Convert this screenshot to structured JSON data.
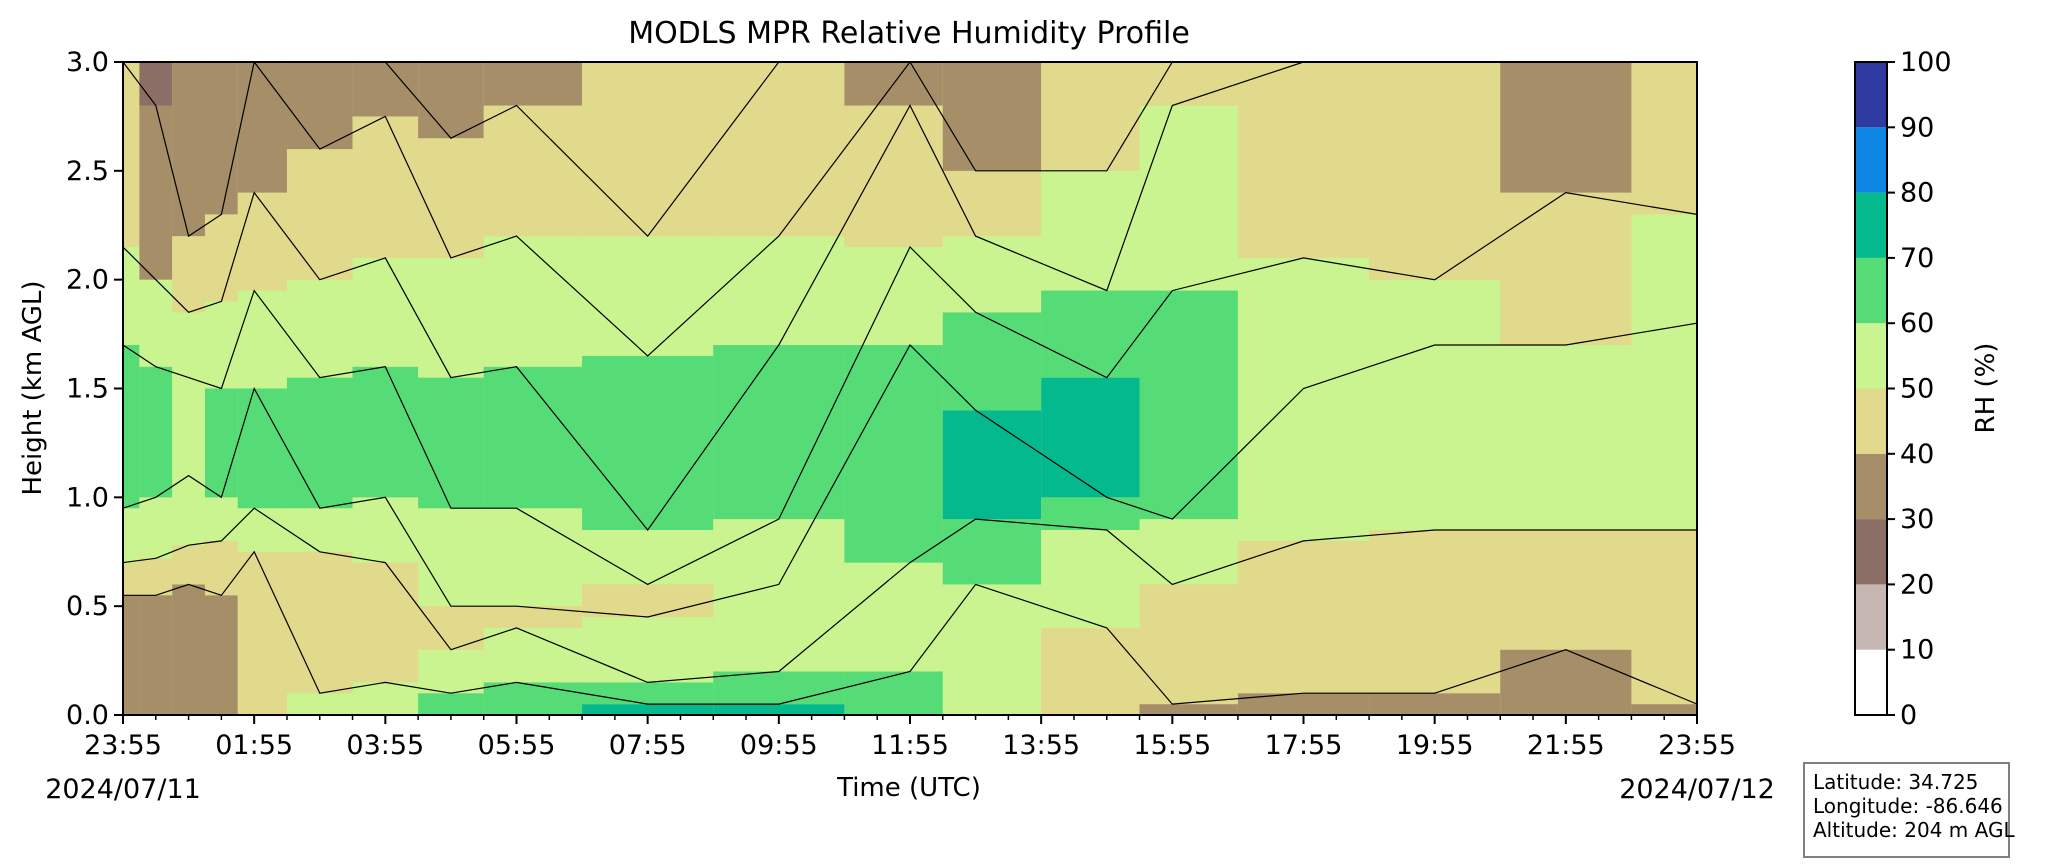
{
  "colors": {
    "levels": [
      "#ffffff",
      "#c7b7b3",
      "#8b6e65",
      "#a68f68",
      "#e1d98b",
      "#c9f48f",
      "#55dc77",
      "#05b98e",
      "#0c86e2",
      "#2e3aa0"
    ],
    "contour_line": "#000000"
  },
  "chart_data": {
    "type": "heatmap",
    "title": "MODLS MPR Relative Humidity Profile",
    "xlabel": "Time (UTC)",
    "ylabel": "Height (km AGL)",
    "x_ticks": [
      "23:55",
      "01:55",
      "03:55",
      "05:55",
      "07:55",
      "09:55",
      "11:55",
      "13:55",
      "15:55",
      "17:55",
      "19:55",
      "21:55",
      "23:55"
    ],
    "x_dates": [
      "2024/07/11",
      "2024/07/12"
    ],
    "y_ticks": [
      "0.0",
      "0.5",
      "1.0",
      "1.5",
      "2.0",
      "2.5",
      "3.0"
    ],
    "ylim": [
      0,
      3
    ],
    "xlim_hours": [
      0,
      24
    ],
    "colorbar": {
      "label": "RH (%)",
      "levels": [
        0,
        10,
        20,
        30,
        40,
        50,
        60,
        70,
        80,
        90,
        100
      ],
      "tick_labels": [
        "0",
        "10",
        "20",
        "30",
        "40",
        "50",
        "60",
        "70",
        "80",
        "90",
        "100"
      ]
    },
    "grid": false,
    "time_columns_hours": [
      0,
      0.5,
      1,
      1.5,
      2,
      2.5,
      3,
      3.5,
      4,
      4.5,
      5,
      5.5,
      6,
      6.5,
      7,
      7.5,
      8,
      8.5,
      9,
      9.5,
      10,
      10.5,
      11,
      11.5,
      12,
      12.5,
      13,
      13.5,
      14,
      14.5,
      15,
      15.5,
      16,
      16.5,
      17,
      17.5,
      18,
      18.5,
      19,
      19.5,
      20,
      20.5,
      21,
      21.5,
      22,
      22.5,
      23,
      23.5,
      24
    ],
    "bands_note_km": "Each column lists upper heights (km) of stacked RH classes, bottom to top.",
    "bands": [
      {
        "t": 0,
        "layers": [
          [
            30,
            0.55
          ],
          [
            40,
            0.7
          ],
          [
            50,
            0.95
          ],
          [
            60,
            1.7
          ],
          [
            50,
            2.15
          ],
          [
            40,
            3.0
          ]
        ]
      },
      {
        "t": 0.5,
        "layers": [
          [
            30,
            0.55
          ],
          [
            40,
            0.72
          ],
          [
            50,
            1.0
          ],
          [
            60,
            1.6
          ],
          [
            50,
            2.0
          ],
          [
            30,
            2.8
          ],
          [
            20,
            3.0
          ]
        ]
      },
      {
        "t": 1,
        "layers": [
          [
            30,
            0.6
          ],
          [
            40,
            0.78
          ],
          [
            50,
            1.1
          ],
          [
            50,
            1.55
          ],
          [
            50,
            1.85
          ],
          [
            40,
            2.2
          ],
          [
            30,
            3.0
          ]
        ]
      },
      {
        "t": 1.5,
        "layers": [
          [
            30,
            0.55
          ],
          [
            40,
            0.8
          ],
          [
            50,
            1.0
          ],
          [
            60,
            1.5
          ],
          [
            50,
            1.9
          ],
          [
            40,
            2.3
          ],
          [
            30,
            3.0
          ]
        ]
      },
      {
        "t": 2,
        "layers": [
          [
            40,
            0.75
          ],
          [
            50,
            0.95
          ],
          [
            60,
            1.5
          ],
          [
            50,
            1.95
          ],
          [
            40,
            2.4
          ],
          [
            30,
            3.0
          ]
        ]
      },
      {
        "t": 3,
        "layers": [
          [
            50,
            0.1
          ],
          [
            40,
            0.75
          ],
          [
            50,
            0.95
          ],
          [
            60,
            1.55
          ],
          [
            50,
            2.0
          ],
          [
            40,
            2.6
          ],
          [
            30,
            3.0
          ]
        ]
      },
      {
        "t": 4,
        "layers": [
          [
            50,
            0.15
          ],
          [
            40,
            0.7
          ],
          [
            50,
            1.0
          ],
          [
            60,
            1.6
          ],
          [
            50,
            2.1
          ],
          [
            40,
            2.75
          ],
          [
            30,
            3.0
          ]
        ]
      },
      {
        "t": 5,
        "layers": [
          [
            60,
            0.1
          ],
          [
            50,
            0.3
          ],
          [
            40,
            0.5
          ],
          [
            50,
            0.95
          ],
          [
            60,
            1.55
          ],
          [
            50,
            2.1
          ],
          [
            40,
            2.65
          ],
          [
            30,
            3.0
          ]
        ]
      },
      {
        "t": 6,
        "layers": [
          [
            60,
            0.15
          ],
          [
            50,
            0.4
          ],
          [
            40,
            0.5
          ],
          [
            50,
            0.95
          ],
          [
            60,
            1.6
          ],
          [
            50,
            2.2
          ],
          [
            40,
            2.8
          ],
          [
            30,
            3.0
          ]
        ]
      },
      {
        "t": 8,
        "layers": [
          [
            70,
            0.05
          ],
          [
            60,
            0.15
          ],
          [
            50,
            0.45
          ],
          [
            40,
            0.6
          ],
          [
            50,
            0.85
          ],
          [
            60,
            1.65
          ],
          [
            50,
            2.2
          ],
          [
            40,
            3.0
          ]
        ]
      },
      {
        "t": 10,
        "layers": [
          [
            70,
            0.05
          ],
          [
            60,
            0.2
          ],
          [
            50,
            0.6
          ],
          [
            50,
            0.9
          ],
          [
            60,
            1.7
          ],
          [
            50,
            2.2
          ],
          [
            40,
            3.0
          ]
        ]
      },
      {
        "t": 12,
        "layers": [
          [
            60,
            0.2
          ],
          [
            50,
            0.7
          ],
          [
            60,
            1.7
          ],
          [
            50,
            2.15
          ],
          [
            40,
            2.8
          ],
          [
            30,
            3.0
          ]
        ]
      },
      {
        "t": 13,
        "layers": [
          [
            50,
            0.6
          ],
          [
            60,
            0.9
          ],
          [
            70,
            1.4
          ],
          [
            60,
            1.85
          ],
          [
            50,
            2.2
          ],
          [
            40,
            2.5
          ],
          [
            30,
            3.0
          ]
        ]
      },
      {
        "t": 15,
        "layers": [
          [
            40,
            0.4
          ],
          [
            50,
            0.85
          ],
          [
            60,
            1.0
          ],
          [
            70,
            1.55
          ],
          [
            60,
            1.95
          ],
          [
            50,
            2.5
          ],
          [
            40,
            3.0
          ]
        ]
      },
      {
        "t": 16,
        "layers": [
          [
            30,
            0.05
          ],
          [
            40,
            0.6
          ],
          [
            50,
            0.9
          ],
          [
            60,
            1.95
          ],
          [
            50,
            2.8
          ],
          [
            40,
            3.0
          ]
        ]
      },
      {
        "t": 18,
        "layers": [
          [
            30,
            0.1
          ],
          [
            40,
            0.8
          ],
          [
            50,
            1.5
          ],
          [
            50,
            2.1
          ],
          [
            40,
            3.0
          ]
        ]
      },
      {
        "t": 20,
        "layers": [
          [
            30,
            0.1
          ],
          [
            40,
            0.85
          ],
          [
            50,
            1.7
          ],
          [
            50,
            2.0
          ],
          [
            40,
            3.0
          ]
        ]
      },
      {
        "t": 22,
        "layers": [
          [
            30,
            0.3
          ],
          [
            40,
            0.85
          ],
          [
            50,
            1.7
          ],
          [
            40,
            2.4
          ],
          [
            30,
            3.0
          ]
        ]
      },
      {
        "t": 24,
        "layers": [
          [
            30,
            0.05
          ],
          [
            40,
            0.85
          ],
          [
            50,
            1.8
          ],
          [
            50,
            2.3
          ],
          [
            40,
            3.0
          ]
        ]
      }
    ]
  },
  "info_box": {
    "latitude": "Latitude: 34.725",
    "longitude": "Longitude: -86.646",
    "altitude": "Altitude: 204 m AGL"
  }
}
